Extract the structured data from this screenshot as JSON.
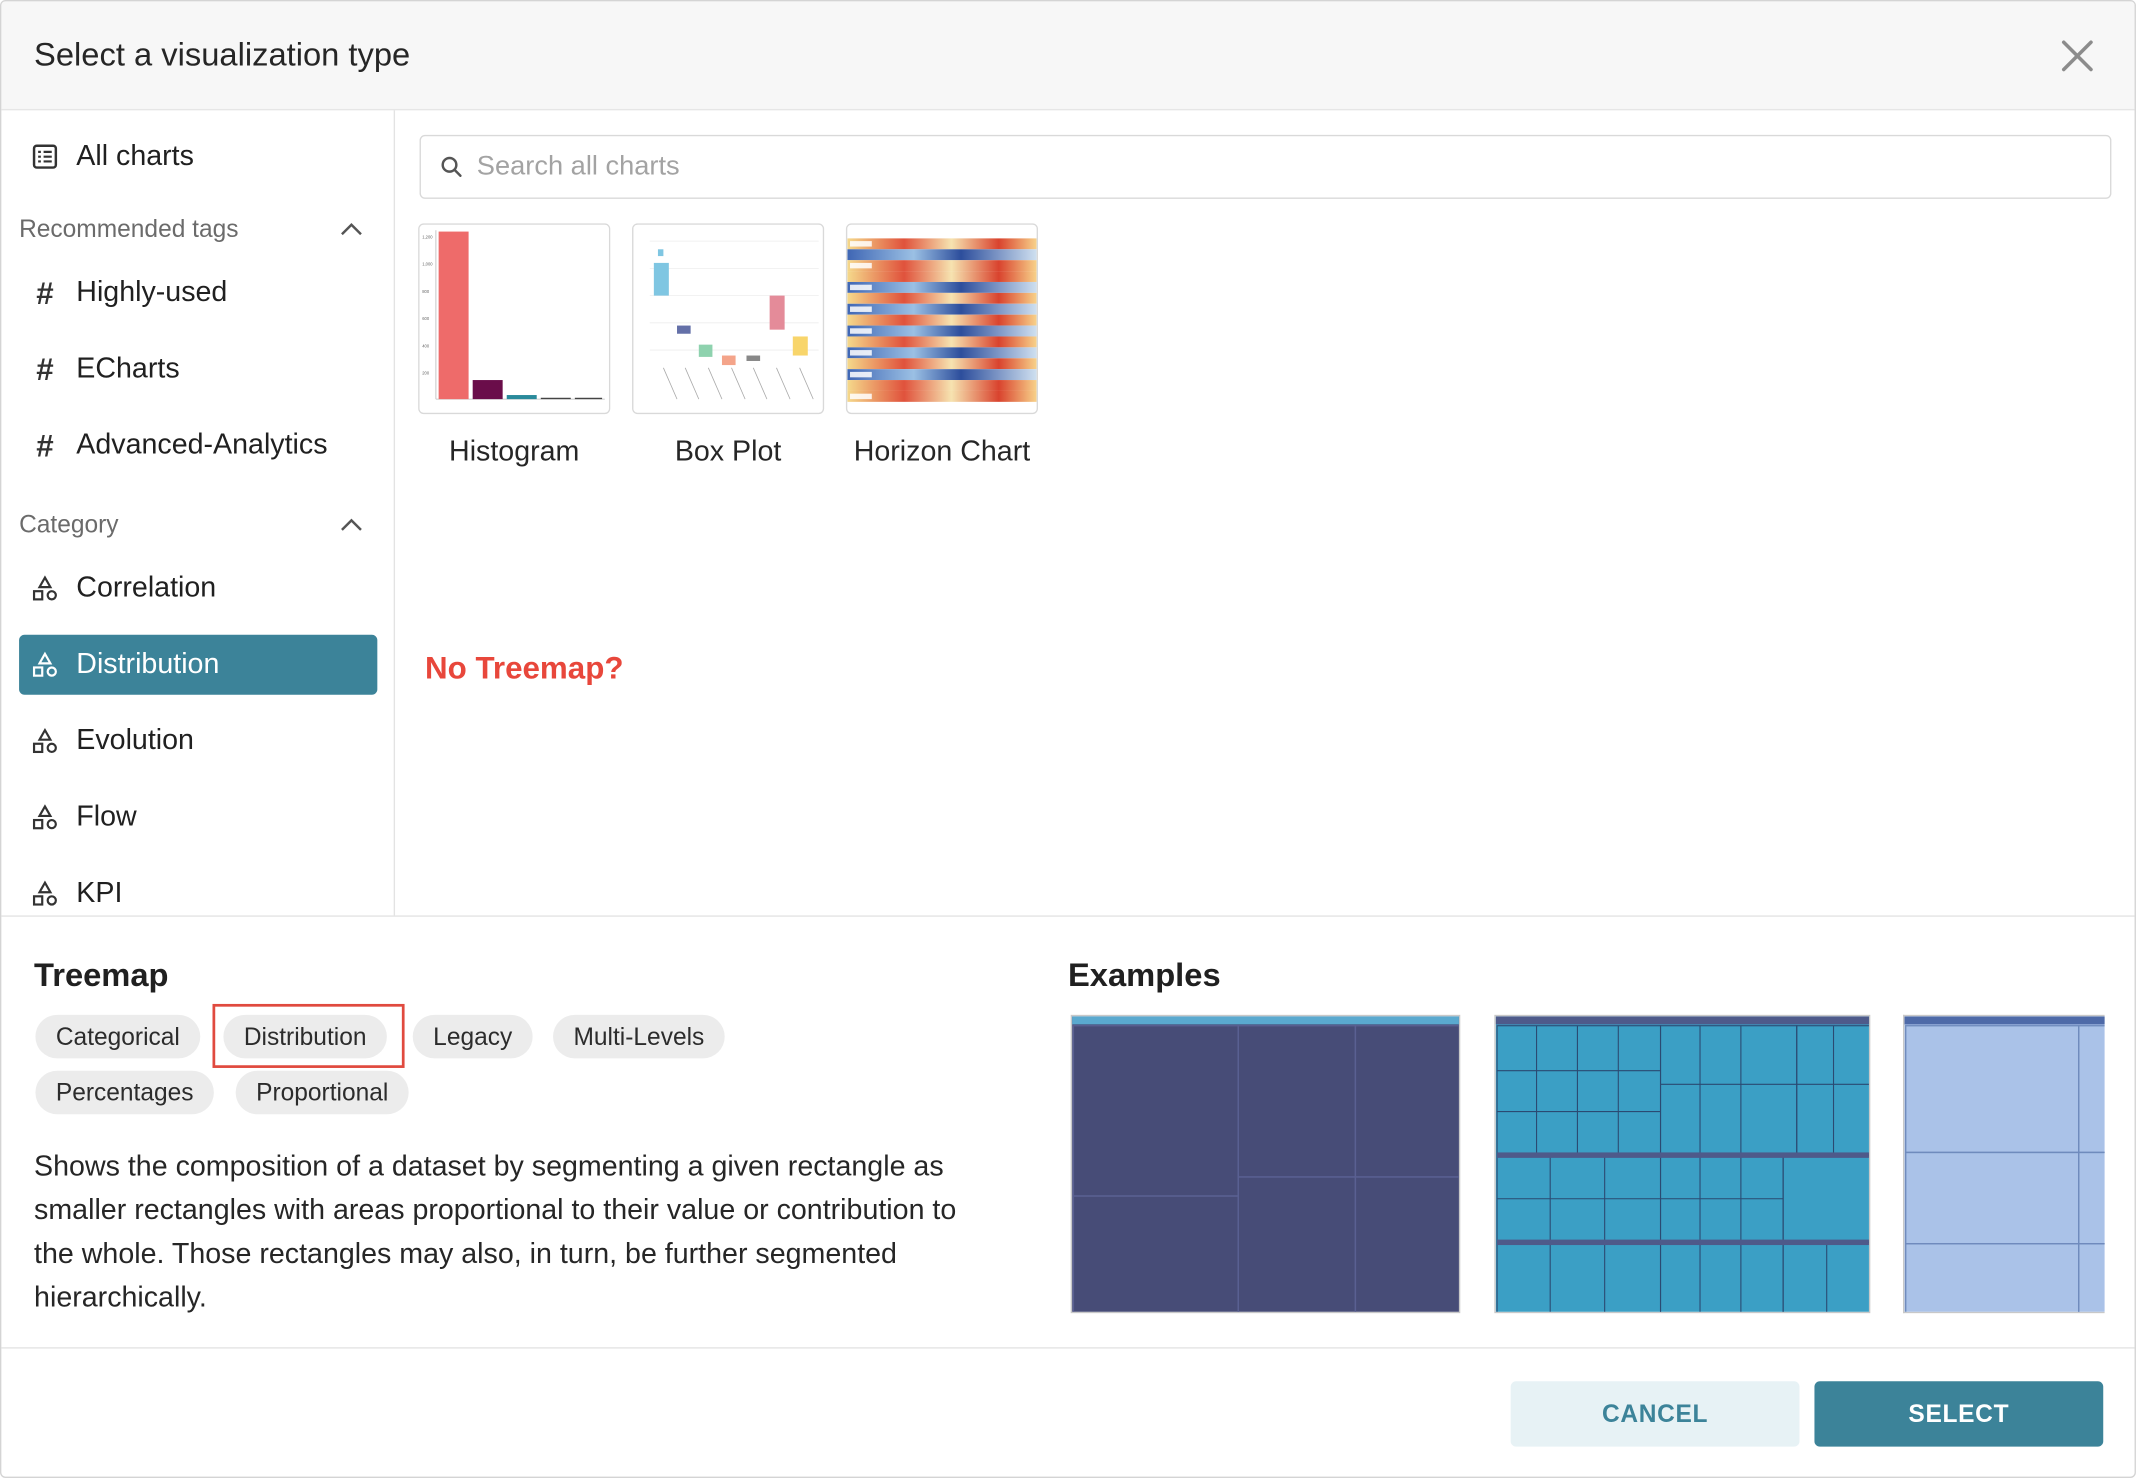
{
  "modal": {
    "title": "Select a visualization type"
  },
  "sidebar": {
    "all_charts": "All charts",
    "recommended_header": "Recommended tags",
    "recommended": [
      "Highly-used",
      "ECharts",
      "Advanced-Analytics"
    ],
    "category_header": "Category",
    "categories": [
      "Correlation",
      "Distribution",
      "Evolution",
      "Flow",
      "KPI"
    ],
    "active_category": "Distribution"
  },
  "search": {
    "placeholder": "Search all charts",
    "value": ""
  },
  "charts": [
    {
      "label": "Histogram"
    },
    {
      "label": "Box Plot"
    },
    {
      "label": "Horizon Chart"
    }
  ],
  "annotation": "No Treemap?",
  "details": {
    "name": "Treemap",
    "tags": [
      "Categorical",
      "Distribution",
      "Legacy",
      "Multi-Levels",
      "Percentages",
      "Proportional"
    ],
    "highlighted_tag": "Distribution",
    "description": "Shows the composition of a dataset by segmenting a given rectangle as smaller rectangles with areas proportional to their value or contribution to the whole. Those rectangles may also, in turn, be further segmented hierarchically.",
    "examples_title": "Examples"
  },
  "footer": {
    "cancel": "CANCEL",
    "select": "SELECT"
  },
  "colors": {
    "accent": "#3c8399",
    "annotation": "#e8473b",
    "highlight_border": "#e04a3f"
  }
}
